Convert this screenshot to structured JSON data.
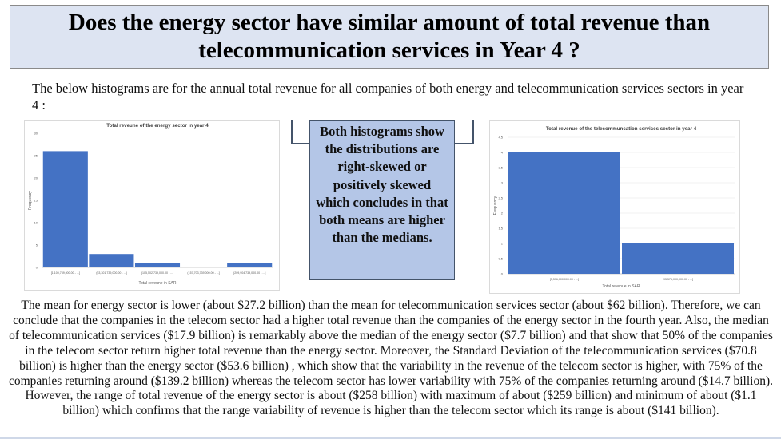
{
  "slide": {
    "title": "Does the energy sector have similar amount of total revenue than telecommunication services in Year 4 ?",
    "intro": "The below histograms are for the annual total revenue for all companies of both energy and telecommunication services sectors in year 4 :",
    "callout": "Both histograms show the distributions are right-skewed or positively skewed which concludes in that both means are higher than the medians.",
    "body": "The mean for energy sector is lower (about $27.2 billion) than the mean for telecommunication services sector (about $62 billion). Therefore, we can conclude that the companies in the telecom sector had a higher total revenue than the companies of the energy sector in the fourth year. Also, the  median of telecommunication services ($17.9 billion) is remarkably above the median of the energy sector ($7.7 billion) and that show that 50% of the companies in the telecom sector return higher total revenue than the energy sector. Moreover, the Standard Deviation of the telecommunication services ($70.8 billion) is higher than the energy sector ($53.6 billion) , which show that the variability in the revenue of the telecom sector is higher, with 75% of the companies returning around ($139.2 billion) whereas the telecom sector has lower variability with 75% of the companies returning around ($14.7 billion). However, the range of total revenue of the energy sector is about ($258 billion) with maximum of about ($259 billion) and minimum of about ($1.1 billion) which confirms that the range variability of revenue is higher than the telecom sector which its range is about ($141 billion)."
  },
  "chart_data": [
    {
      "type": "bar",
      "title": "Total reveune of the energy sector in year 4",
      "xlabel": "Total reveune in SAR",
      "ylabel": "Frequency",
      "categories": [
        "[1,100,739,000.00 - ...]",
        "(53,301,739,000.00 - ...]",
        "(105,502,739,000.00 - ...]",
        "(157,703,739,000.00 - ...]",
        "(209,904,739,000.00 - ...]"
      ],
      "values": [
        26,
        3,
        1,
        0,
        1
      ],
      "yticks": [
        0,
        5,
        10,
        15,
        20,
        25,
        30
      ],
      "ylim": [
        0,
        30
      ],
      "grid": false,
      "color": "#4472c4"
    },
    {
      "type": "bar",
      "title": "Total revenue of the telecommuncation services sector in year 4",
      "xlabel": "Total revenue in SAR",
      "ylabel": "Frequency",
      "categories": [
        "[5,576,000,000.00 - ...]",
        "(95,576,000,000.00 - ...]"
      ],
      "values": [
        4,
        1
      ],
      "yticks": [
        0,
        0.5,
        1,
        1.5,
        2,
        2.5,
        3,
        3.5,
        4,
        4.5
      ],
      "ylim": [
        0,
        4.5
      ],
      "grid": true,
      "color": "#4472c4"
    }
  ]
}
